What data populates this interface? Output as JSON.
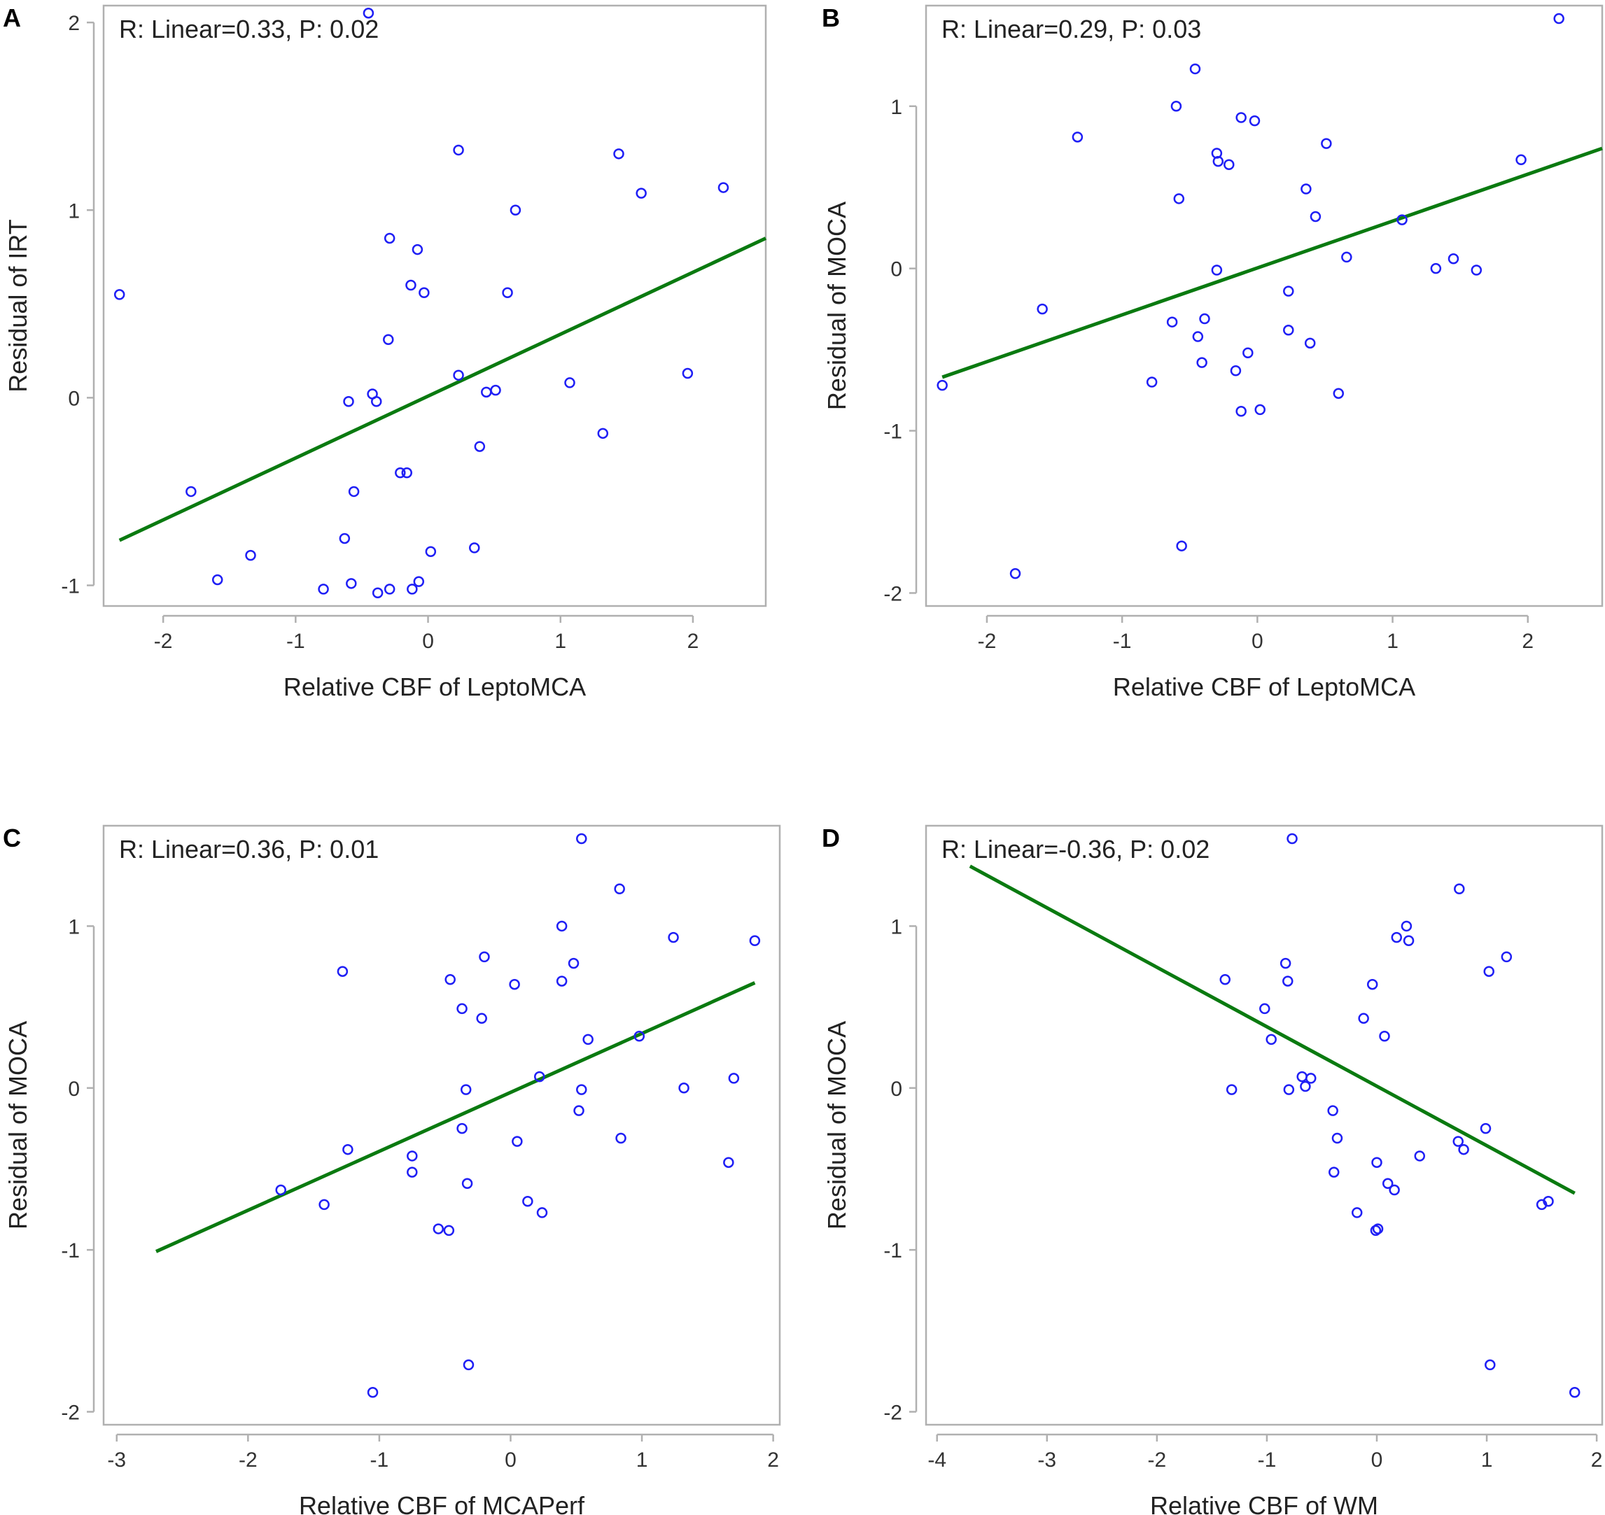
{
  "chart_data": [
    {
      "type": "scatter",
      "panel": "A",
      "annotation": "R: Linear=0.33, P: 0.02",
      "xlabel": "Relative CBF of LeptoMCA",
      "ylabel": "Residual of IRT",
      "xlim": [
        -2.45,
        2.55
      ],
      "ylim": [
        -1.11,
        2.09
      ],
      "xticks": [
        -2,
        -1,
        0,
        1,
        2
      ],
      "yticks": [
        -1,
        0,
        1,
        2
      ],
      "xtick_labels": [
        "-2",
        "-1",
        "0",
        "1",
        "2"
      ],
      "ytick_labels": [
        "-1",
        "0",
        "1",
        "2"
      ],
      "fit_line": {
        "x": [
          -2.33,
          2.55
        ],
        "y": [
          -0.76,
          0.85
        ]
      },
      "points": [
        {
          "x": -2.33,
          "y": 0.55
        },
        {
          "x": -1.79,
          "y": -0.5
        },
        {
          "x": -1.59,
          "y": -0.97
        },
        {
          "x": -1.34,
          "y": -0.84
        },
        {
          "x": -0.79,
          "y": -1.02
        },
        {
          "x": -0.63,
          "y": -0.75
        },
        {
          "x": -0.6,
          "y": -0.02
        },
        {
          "x": -0.58,
          "y": -0.99
        },
        {
          "x": -0.56,
          "y": -0.5
        },
        {
          "x": -0.45,
          "y": 2.05
        },
        {
          "x": -0.42,
          "y": 0.02
        },
        {
          "x": -0.39,
          "y": -0.02
        },
        {
          "x": -0.38,
          "y": -1.04
        },
        {
          "x": -0.3,
          "y": 0.31
        },
        {
          "x": -0.29,
          "y": 0.85
        },
        {
          "x": -0.29,
          "y": -1.02
        },
        {
          "x": -0.21,
          "y": -0.4
        },
        {
          "x": -0.16,
          "y": -0.4
        },
        {
          "x": -0.13,
          "y": 0.6
        },
        {
          "x": -0.12,
          "y": -1.02
        },
        {
          "x": -0.08,
          "y": 0.79
        },
        {
          "x": -0.07,
          "y": -0.98
        },
        {
          "x": -0.03,
          "y": 0.56
        },
        {
          "x": 0.02,
          "y": -0.82
        },
        {
          "x": 0.23,
          "y": 1.32
        },
        {
          "x": 0.23,
          "y": 0.12
        },
        {
          "x": 0.35,
          "y": -0.8
        },
        {
          "x": 0.39,
          "y": -0.26
        },
        {
          "x": 0.44,
          "y": 0.03
        },
        {
          "x": 0.51,
          "y": 0.04
        },
        {
          "x": 0.6,
          "y": 0.56
        },
        {
          "x": 0.66,
          "y": 1.0
        },
        {
          "x": 1.07,
          "y": 0.08
        },
        {
          "x": 1.32,
          "y": -0.19
        },
        {
          "x": 1.44,
          "y": 1.3
        },
        {
          "x": 1.61,
          "y": 1.09
        },
        {
          "x": 1.96,
          "y": 0.13
        },
        {
          "x": 2.23,
          "y": 1.12
        }
      ]
    },
    {
      "type": "scatter",
      "panel": "B",
      "annotation": "R: Linear=0.29, P: 0.03",
      "xlabel": "Relative CBF of LeptoMCA",
      "ylabel": "Residual of MOCA",
      "xlim": [
        -2.45,
        2.55
      ],
      "ylim": [
        -2.08,
        1.62
      ],
      "xticks": [
        -2,
        -1,
        0,
        1,
        2
      ],
      "yticks": [
        -2,
        -1,
        0,
        1
      ],
      "xtick_labels": [
        "-2",
        "-1",
        "0",
        "1",
        "2"
      ],
      "ytick_labels": [
        "-2",
        "-1",
        "0",
        "1"
      ],
      "fit_line": {
        "x": [
          -2.33,
          2.55
        ],
        "y": [
          -0.67,
          0.74
        ]
      },
      "points": [
        {
          "x": -2.33,
          "y": -0.72
        },
        {
          "x": -1.79,
          "y": -1.88
        },
        {
          "x": -1.59,
          "y": -0.25
        },
        {
          "x": -1.33,
          "y": 0.81
        },
        {
          "x": -0.78,
          "y": -0.7
        },
        {
          "x": -0.63,
          "y": -0.33
        },
        {
          "x": -0.6,
          "y": 1.0
        },
        {
          "x": -0.58,
          "y": 0.43
        },
        {
          "x": -0.56,
          "y": -1.71
        },
        {
          "x": -0.46,
          "y": 1.23
        },
        {
          "x": -0.44,
          "y": -0.42
        },
        {
          "x": -0.41,
          "y": -0.58
        },
        {
          "x": -0.39,
          "y": -0.31
        },
        {
          "x": -0.3,
          "y": 0.71
        },
        {
          "x": -0.29,
          "y": 0.66
        },
        {
          "x": -0.3,
          "y": -0.01
        },
        {
          "x": -0.21,
          "y": 0.64
        },
        {
          "x": -0.16,
          "y": -0.63
        },
        {
          "x": -0.12,
          "y": 0.93
        },
        {
          "x": -0.12,
          "y": -0.88
        },
        {
          "x": -0.07,
          "y": -0.52
        },
        {
          "x": -0.02,
          "y": 0.91
        },
        {
          "x": 0.02,
          "y": -0.87
        },
        {
          "x": 0.23,
          "y": -0.14
        },
        {
          "x": 0.23,
          "y": -0.38
        },
        {
          "x": 0.36,
          "y": 0.49
        },
        {
          "x": 0.39,
          "y": -0.46
        },
        {
          "x": 0.43,
          "y": 0.32
        },
        {
          "x": 0.51,
          "y": 0.77
        },
        {
          "x": 0.6,
          "y": -0.77
        },
        {
          "x": 0.66,
          "y": 0.07
        },
        {
          "x": 1.07,
          "y": 0.3
        },
        {
          "x": 1.32,
          "y": 0.0
        },
        {
          "x": 1.45,
          "y": 0.06
        },
        {
          "x": 1.62,
          "y": -0.01
        },
        {
          "x": 1.95,
          "y": 0.67
        },
        {
          "x": 2.23,
          "y": 1.54
        }
      ]
    },
    {
      "type": "scatter",
      "panel": "C",
      "annotation": "R: Linear=0.36, P: 0.01",
      "xlabel": "Relative CBF of MCAPerf",
      "ylabel": "Residual of MOCA",
      "xlim": [
        -3.1,
        2.05
      ],
      "ylim": [
        -2.08,
        1.62
      ],
      "xticks": [
        -3,
        -2,
        -1,
        0,
        1,
        2
      ],
      "yticks": [
        -2,
        -1,
        0,
        1
      ],
      "xtick_labels": [
        "-3",
        "-2",
        "-1",
        "0",
        "1",
        "2"
      ],
      "ytick_labels": [
        "-2",
        "-1",
        "0",
        "1"
      ],
      "fit_line": {
        "x": [
          -2.7,
          1.86
        ],
        "y": [
          -1.01,
          0.65
        ]
      },
      "points": [
        {
          "x": -1.75,
          "y": -0.63
        },
        {
          "x": -1.42,
          "y": -0.72
        },
        {
          "x": -1.28,
          "y": 0.72
        },
        {
          "x": -1.24,
          "y": -0.38
        },
        {
          "x": -1.05,
          "y": -1.88
        },
        {
          "x": -0.75,
          "y": -0.42
        },
        {
          "x": -0.75,
          "y": -0.52
        },
        {
          "x": -0.55,
          "y": -0.87
        },
        {
          "x": -0.47,
          "y": -0.88
        },
        {
          "x": -0.46,
          "y": 0.67
        },
        {
          "x": -0.37,
          "y": 0.49
        },
        {
          "x": -0.37,
          "y": -0.25
        },
        {
          "x": -0.34,
          "y": -0.01
        },
        {
          "x": -0.33,
          "y": -0.59
        },
        {
          "x": -0.32,
          "y": -1.71
        },
        {
          "x": -0.22,
          "y": 0.43
        },
        {
          "x": -0.2,
          "y": 0.81
        },
        {
          "x": 0.03,
          "y": 0.64
        },
        {
          "x": 0.05,
          "y": -0.33
        },
        {
          "x": 0.13,
          "y": -0.7
        },
        {
          "x": 0.22,
          "y": 0.07
        },
        {
          "x": 0.24,
          "y": -0.77
        },
        {
          "x": 0.39,
          "y": 1.0
        },
        {
          "x": 0.39,
          "y": 0.66
        },
        {
          "x": 0.48,
          "y": 0.77
        },
        {
          "x": 0.52,
          "y": -0.14
        },
        {
          "x": 0.54,
          "y": -0.01
        },
        {
          "x": 0.54,
          "y": 1.54
        },
        {
          "x": 0.59,
          "y": 0.3
        },
        {
          "x": 0.83,
          "y": 1.23
        },
        {
          "x": 0.84,
          "y": -0.31
        },
        {
          "x": 0.98,
          "y": 0.32
        },
        {
          "x": 1.24,
          "y": 0.93
        },
        {
          "x": 1.32,
          "y": 0.0
        },
        {
          "x": 1.66,
          "y": -0.46
        },
        {
          "x": 1.7,
          "y": 0.06
        },
        {
          "x": 1.86,
          "y": 0.91
        }
      ]
    },
    {
      "type": "scatter",
      "panel": "D",
      "annotation": "R: Linear=-0.36, P: 0.02",
      "xlabel": "Relative CBF of WM",
      "ylabel": "Residual of MOCA",
      "xlim": [
        -4.1,
        2.05
      ],
      "ylim": [
        -2.08,
        1.62
      ],
      "xticks": [
        -4,
        -3,
        -2,
        -1,
        0,
        1,
        2
      ],
      "yticks": [
        -2,
        -1,
        0,
        1
      ],
      "xtick_labels": [
        "-4",
        "-3",
        "-2",
        "-1",
        "0",
        "1",
        "2"
      ],
      "ytick_labels": [
        "-2",
        "-1",
        "0",
        "1"
      ],
      "fit_line": {
        "x": [
          -3.7,
          1.8
        ],
        "y": [
          1.37,
          -0.65
        ]
      },
      "points": [
        {
          "x": -1.38,
          "y": 0.67
        },
        {
          "x": -1.32,
          "y": -0.01
        },
        {
          "x": -1.02,
          "y": 0.49
        },
        {
          "x": -0.96,
          "y": 0.3
        },
        {
          "x": -0.83,
          "y": 0.77
        },
        {
          "x": -0.81,
          "y": 0.66
        },
        {
          "x": -0.8,
          "y": -0.01
        },
        {
          "x": -0.77,
          "y": 1.54
        },
        {
          "x": -0.68,
          "y": 0.07
        },
        {
          "x": -0.65,
          "y": 0.01
        },
        {
          "x": -0.6,
          "y": 0.06
        },
        {
          "x": -0.4,
          "y": -0.14
        },
        {
          "x": -0.39,
          "y": -0.52
        },
        {
          "x": -0.36,
          "y": -0.31
        },
        {
          "x": -0.18,
          "y": -0.77
        },
        {
          "x": -0.12,
          "y": 0.43
        },
        {
          "x": -0.04,
          "y": 0.64
        },
        {
          "x": 0.0,
          "y": -0.46
        },
        {
          "x": -0.01,
          "y": -0.88
        },
        {
          "x": 0.01,
          "y": -0.87
        },
        {
          "x": 0.07,
          "y": 0.32
        },
        {
          "x": 0.1,
          "y": -0.59
        },
        {
          "x": 0.16,
          "y": -0.63
        },
        {
          "x": 0.18,
          "y": 0.93
        },
        {
          "x": 0.27,
          "y": 1.0
        },
        {
          "x": 0.29,
          "y": 0.91
        },
        {
          "x": 0.39,
          "y": -0.42
        },
        {
          "x": 0.75,
          "y": 1.23
        },
        {
          "x": 0.74,
          "y": -0.33
        },
        {
          "x": 0.79,
          "y": -0.38
        },
        {
          "x": 0.99,
          "y": -0.25
        },
        {
          "x": 1.02,
          "y": 0.72
        },
        {
          "x": 1.03,
          "y": -1.71
        },
        {
          "x": 1.18,
          "y": 0.81
        },
        {
          "x": 1.5,
          "y": -0.72
        },
        {
          "x": 1.56,
          "y": -0.7
        },
        {
          "x": 1.8,
          "y": -1.88
        }
      ]
    }
  ]
}
